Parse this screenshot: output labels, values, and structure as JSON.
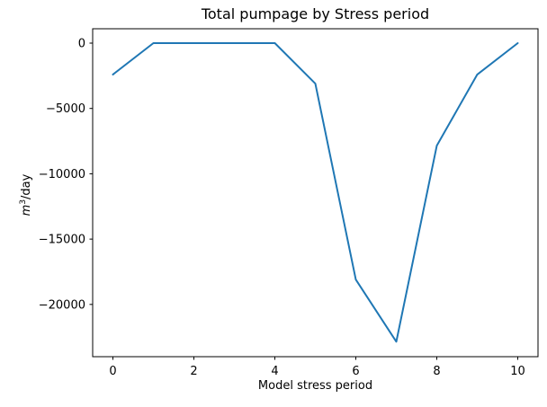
{
  "chart_data": {
    "type": "line",
    "title": "Total pumpage by Stress period",
    "xlabel": "Model stress period",
    "ylabel": {
      "base": "m",
      "exponent": "3",
      "unit": "/day"
    },
    "x": [
      0,
      1,
      2,
      3,
      4,
      5,
      6,
      7,
      8,
      9,
      10
    ],
    "values": [
      -2400,
      0,
      0,
      0,
      0,
      -3100,
      -18100,
      -22850,
      -7850,
      -2400,
      0
    ],
    "xlim": [
      -0.5,
      10.5
    ],
    "ylim": [
      -24000,
      1100
    ],
    "xticks": [
      0,
      2,
      4,
      6,
      8,
      10
    ],
    "xtick_labels": [
      "0",
      "2",
      "4",
      "6",
      "8",
      "10"
    ],
    "yticks": [
      0,
      -5000,
      -10000,
      -15000,
      -20000
    ],
    "ytick_labels": [
      "0",
      "−5000",
      "−10000",
      "−15000",
      "−20000"
    ],
    "line_color": "#1f77b4",
    "axis_color": "#000000",
    "grid": false,
    "legend": "none"
  }
}
